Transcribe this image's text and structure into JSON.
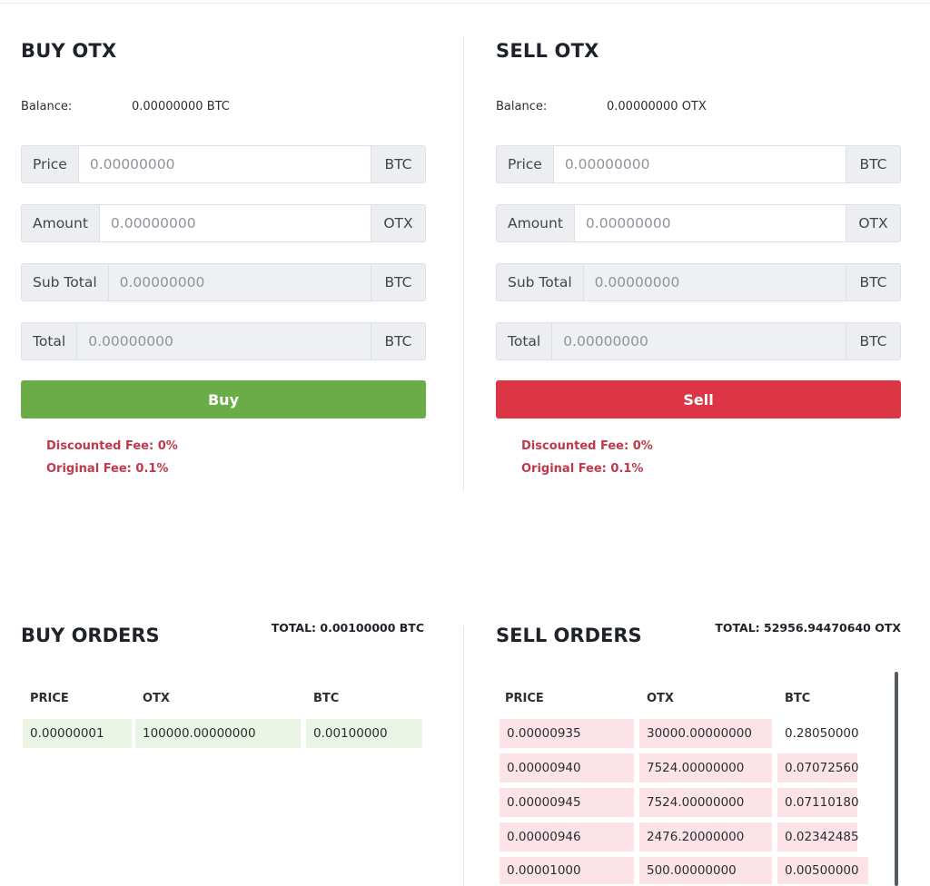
{
  "buy_form": {
    "title": "BUY OTX",
    "balance_label": "Balance:",
    "balance_value": "0.00000000 BTC",
    "price": {
      "label": "Price",
      "placeholder": "0.00000000",
      "unit": "BTC"
    },
    "amount": {
      "label": "Amount",
      "placeholder": "0.00000000",
      "unit": "OTX"
    },
    "subtotal": {
      "label": "Sub Total",
      "placeholder": "0.00000000",
      "unit": "BTC"
    },
    "total": {
      "label": "Total",
      "placeholder": "0.00000000",
      "unit": "BTC"
    },
    "button_label": "Buy",
    "discounted_fee": "Discounted Fee: 0%",
    "original_fee": "Original Fee: 0.1%"
  },
  "sell_form": {
    "title": "SELL OTX",
    "balance_label": "Balance:",
    "balance_value": "0.00000000 OTX",
    "price": {
      "label": "Price",
      "placeholder": "0.00000000",
      "unit": "BTC"
    },
    "amount": {
      "label": "Amount",
      "placeholder": "0.00000000",
      "unit": "OTX"
    },
    "subtotal": {
      "label": "Sub Total",
      "placeholder": "0.00000000",
      "unit": "BTC"
    },
    "total": {
      "label": "Total",
      "placeholder": "0.00000000",
      "unit": "BTC"
    },
    "button_label": "Sell",
    "discounted_fee": "Discounted Fee: 0%",
    "original_fee": "Original Fee: 0.1%"
  },
  "buy_orders": {
    "title": "BUY ORDERS",
    "total": "TOTAL: 0.00100000 BTC",
    "columns": [
      "PRICE",
      "OTX",
      "BTC"
    ],
    "rows": [
      [
        "0.00000001",
        "100000.00000000",
        "0.00100000"
      ]
    ]
  },
  "sell_orders": {
    "title": "SELL ORDERS",
    "total": "TOTAL: 52956.94470640 OTX",
    "columns": [
      "PRICE",
      "OTX",
      "BTC"
    ],
    "rows": [
      [
        "0.00000935",
        "30000.00000000",
        "0.28050000"
      ],
      [
        "0.00000940",
        "7524.00000000",
        "0.07072560"
      ],
      [
        "0.00000945",
        "7524.00000000",
        "0.07110180"
      ],
      [
        "0.00000946",
        "2476.20000000",
        "0.02342485"
      ],
      [
        "0.00001000",
        "500.00000000",
        "0.00500000"
      ]
    ]
  },
  "colors": {
    "buy_button": "#6aac47",
    "sell_button": "#dc3545",
    "fee_text": "#c0394a",
    "buy_row_bg": "#eaf4e5",
    "sell_row_bg": "#fbe3e7"
  }
}
